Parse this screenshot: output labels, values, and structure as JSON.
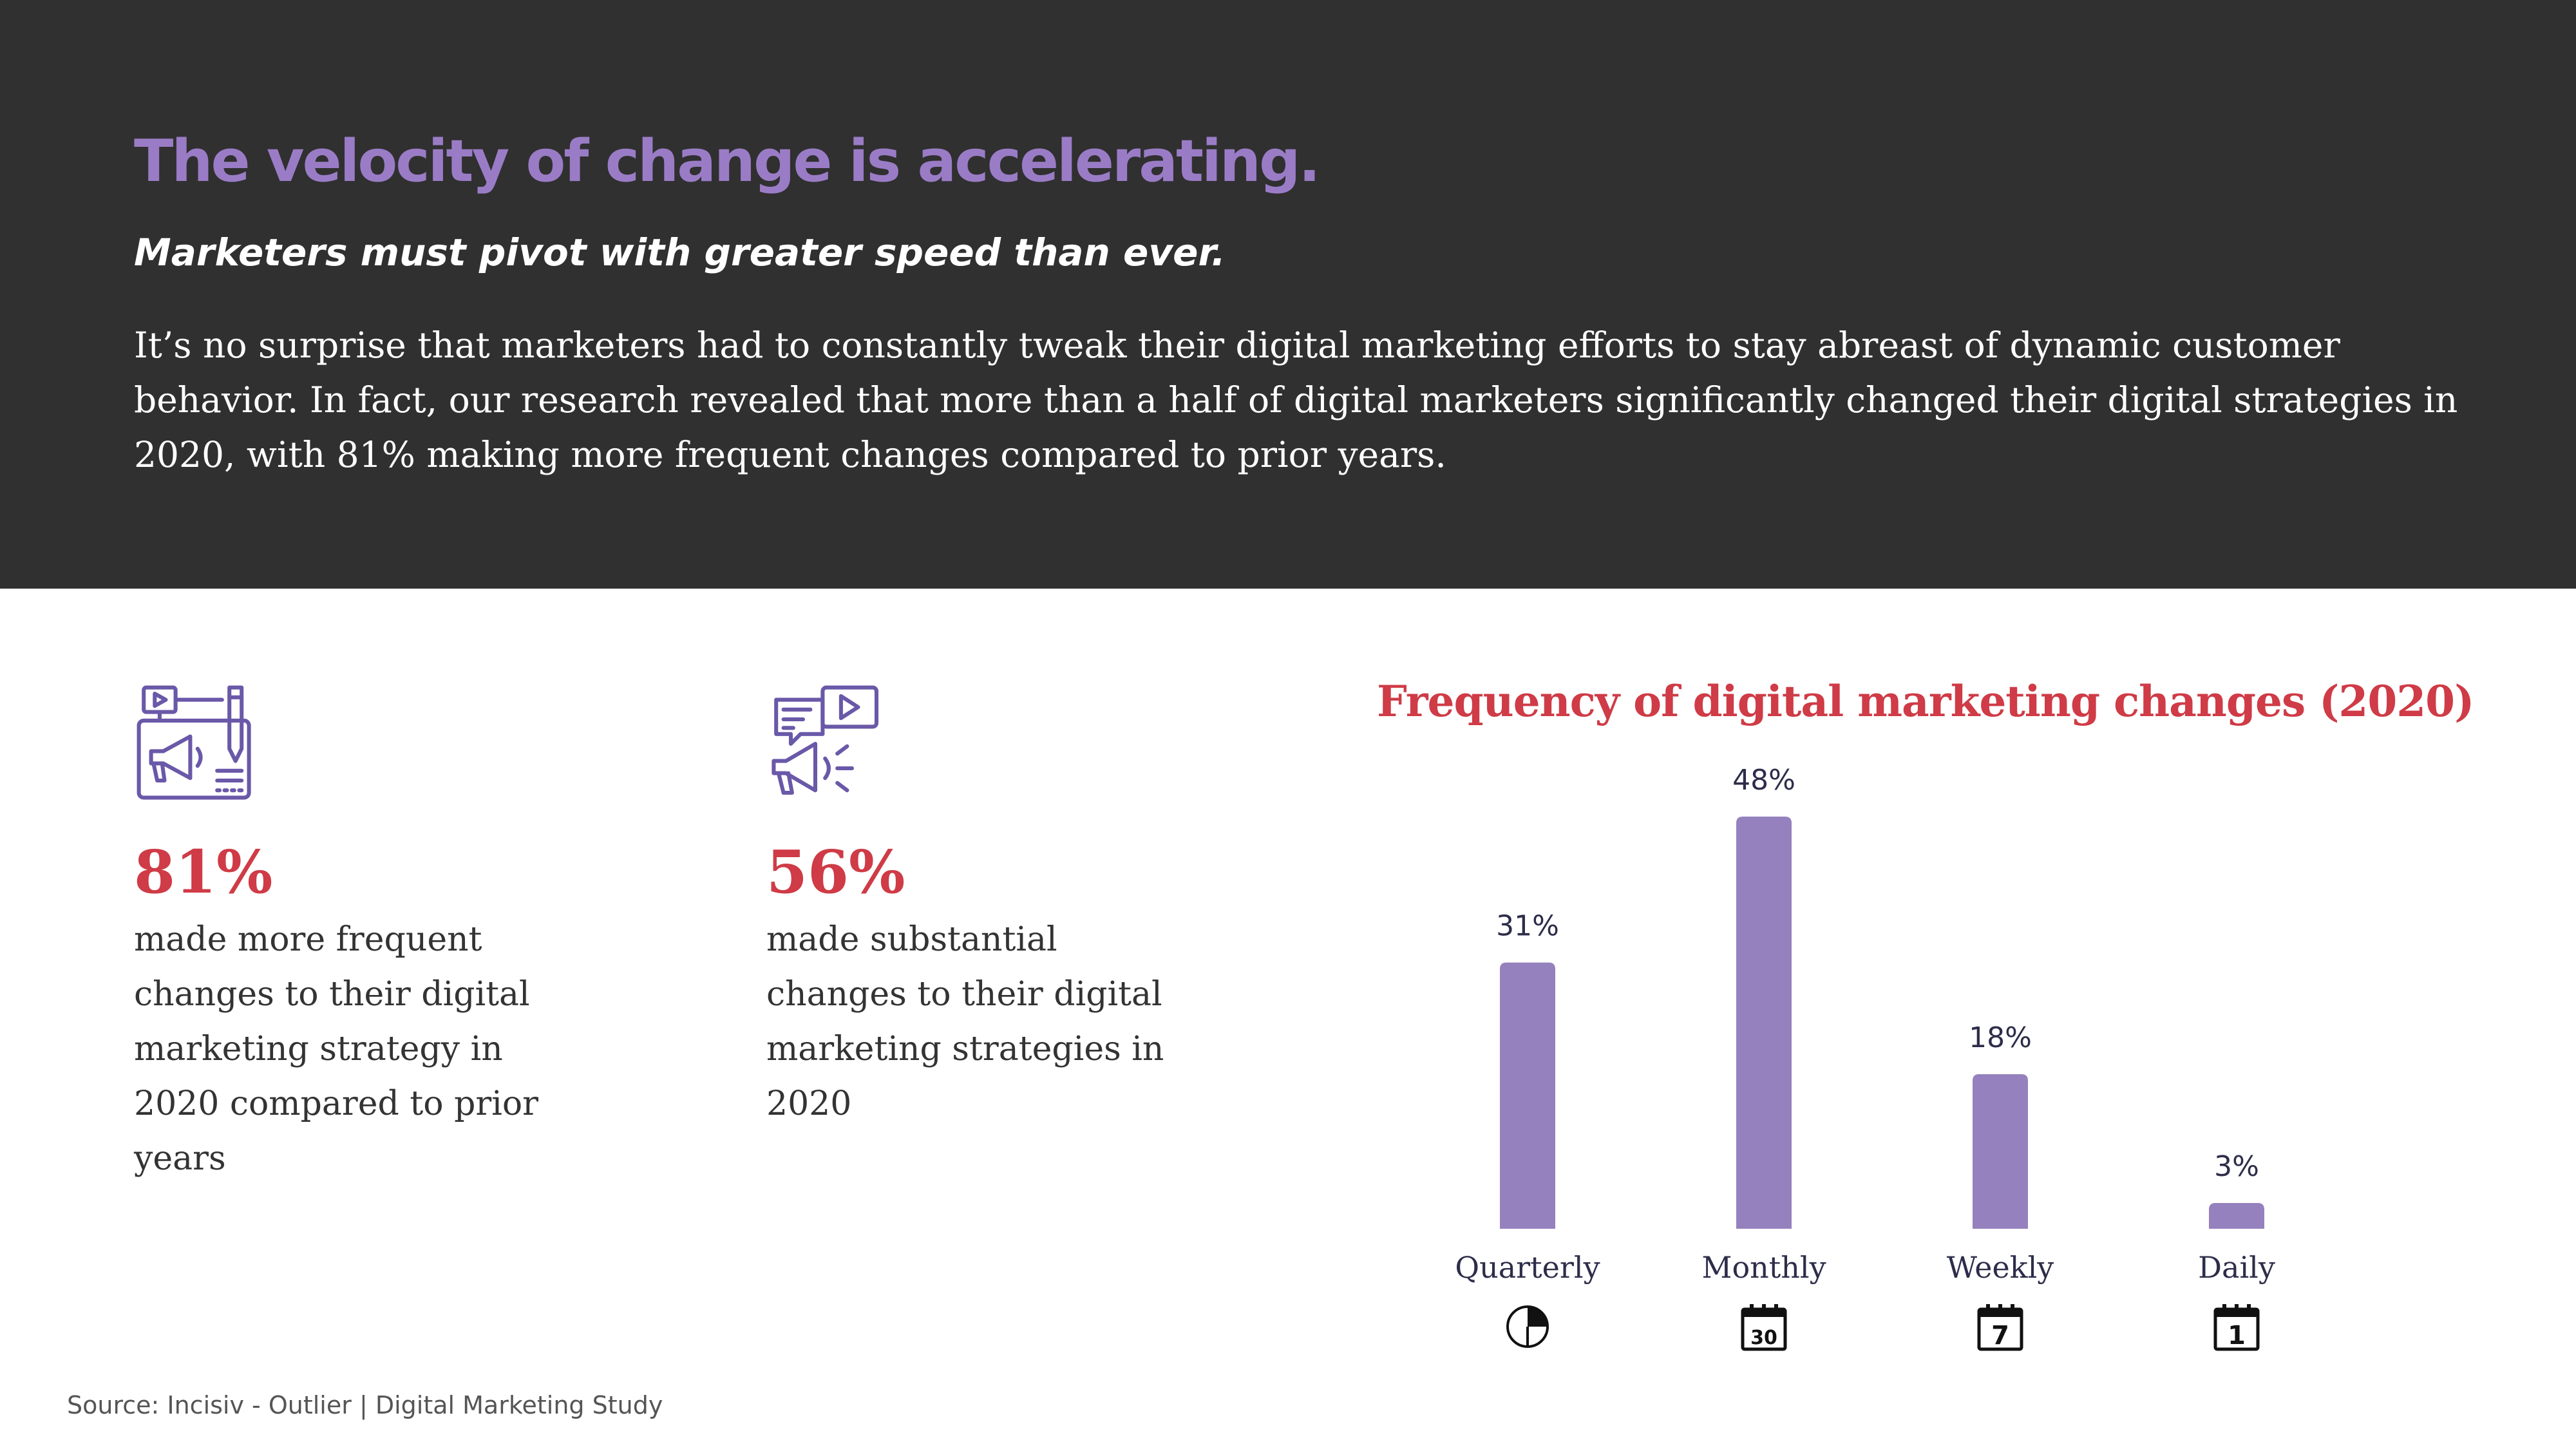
{
  "header": {
    "title": "The velocity of change is accelerating.",
    "subtitle": "Marketers must pivot with greater speed than ever.",
    "body": "It’s no surprise that marketers had to constantly tweak their digital marketing efforts to stay abreast of dynamic customer behavior. In fact, our research revealed that more than a half of digital marketers significantly changed their digital strategies in 2020, with 81% making more frequent changes compared to prior years."
  },
  "stats": [
    {
      "icon": "marketing-board-megaphone-icon",
      "value": "81%",
      "description": "made more frequent changes to their digital marketing strategy in 2020 compared to prior years"
    },
    {
      "icon": "megaphone-video-chat-icon",
      "value": "56%",
      "description": "made substantial changes to their digital marketing strategies in 2020"
    }
  ],
  "chart_data": {
    "type": "bar",
    "title": "Frequency of digital marketing changes (2020)",
    "categories": [
      "Quarterly",
      "Monthly",
      "Weekly",
      "Daily"
    ],
    "values": [
      31,
      48,
      18,
      3
    ],
    "data_labels": [
      "31%",
      "48%",
      "18%",
      "3%"
    ],
    "category_icons": [
      "quarter-pie-icon",
      "calendar-30-icon",
      "calendar-7-icon",
      "calendar-1-icon"
    ],
    "calendar_numbers": [
      "",
      "30",
      "7",
      "1"
    ],
    "xlabel": "",
    "ylabel": "",
    "ylim": [
      0,
      48
    ],
    "grid": false,
    "bar_color": "#9581bd"
  },
  "source": "Source: Incisiv - Outlier | Digital Marketing Study",
  "colors": {
    "header_bg": "#303030",
    "title_purple": "#9a7cc6",
    "accent_red": "#cf3b46",
    "icon_purple": "#6a58a8",
    "text_dark": "#333333"
  }
}
